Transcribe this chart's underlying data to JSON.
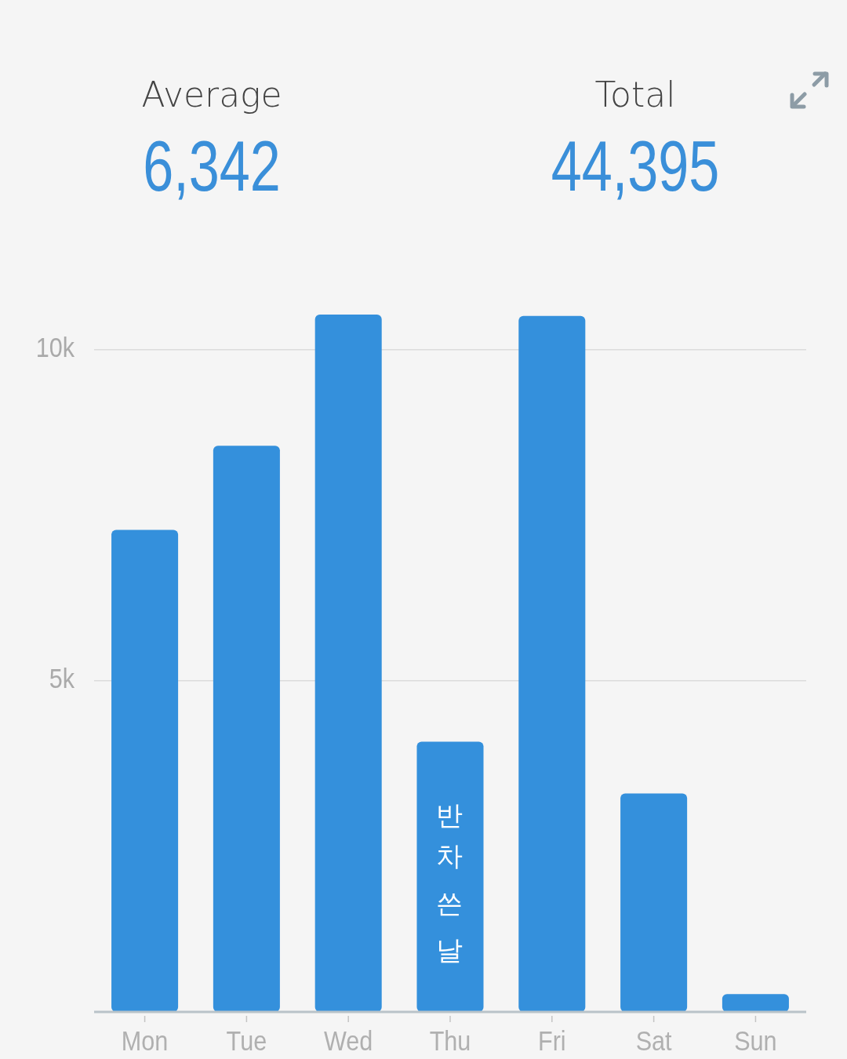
{
  "chart_data": {
    "type": "bar",
    "categories": [
      "Mon",
      "Tue",
      "Wed",
      "Thu",
      "Fri",
      "Sat",
      "Sun"
    ],
    "values": [
      7280,
      8550,
      10530,
      4080,
      10510,
      3300,
      270
    ],
    "color": "#3490dc",
    "ylim": [
      0,
      10530
    ],
    "yticks": [
      {
        "value": 5000,
        "label": "5k"
      },
      {
        "value": 10000,
        "label": "10k"
      }
    ],
    "grid": "y",
    "annotations": [
      "Average",
      "6,342",
      "Total",
      "44,395",
      "반차 쓴 날"
    ]
  }
}
